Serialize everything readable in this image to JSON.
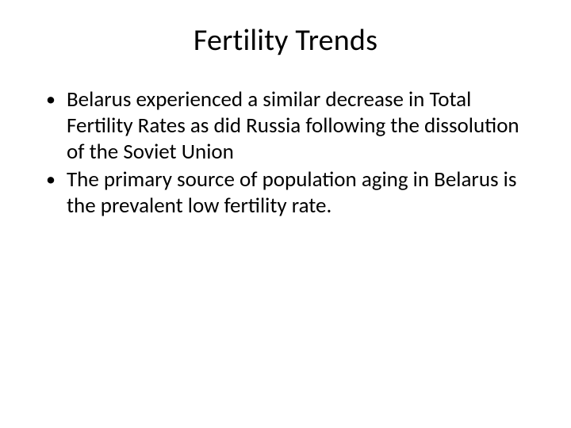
{
  "slide": {
    "title": "Fertility Trends",
    "title_fontsize": 38,
    "title_align": "center",
    "background_color": "#ffffff",
    "text_color": "#000000",
    "font_family": "Calibri",
    "bullets": [
      {
        "text": "Belarus experienced a similar decrease in Total Fertility Rates as did Russia following the dissolution of the Soviet Union"
      },
      {
        "text": " The primary source of population aging in Belarus is the prevalent low fertility rate."
      }
    ],
    "bullet_fontsize": 27,
    "bullet_marker": "•"
  }
}
